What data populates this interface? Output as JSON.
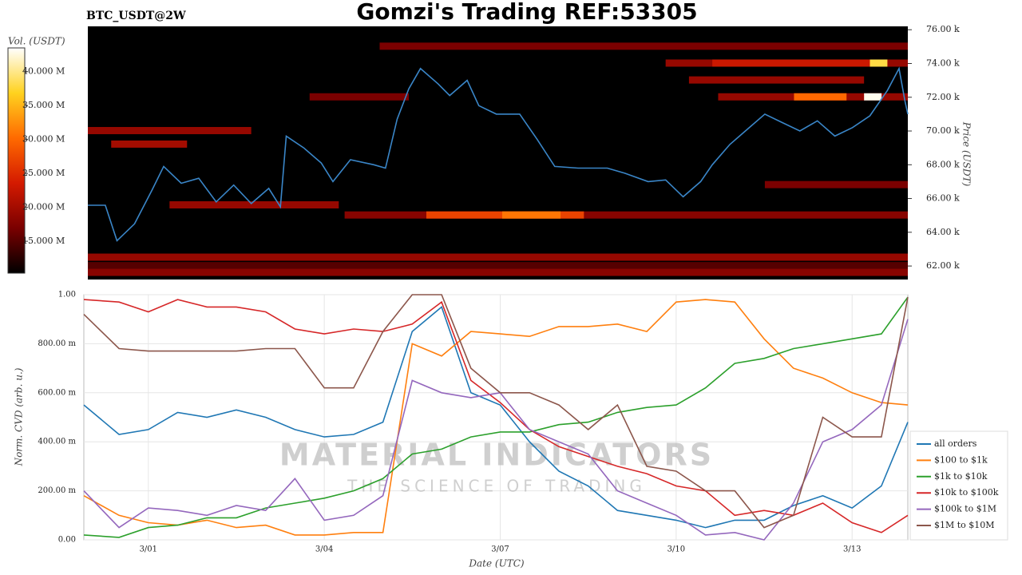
{
  "chart_data": [
    {
      "type": "heatmap",
      "title": "Gomzi's Trading REF:53305",
      "label": "BTC_USDT@2W",
      "ylabel": "Price (USDT)",
      "xlim": [
        -1.1,
        12.95
      ],
      "ylim": [
        61200,
        76200
      ],
      "yticks": [
        {
          "value": 62000,
          "label": "62.00 k"
        },
        {
          "value": 64000,
          "label": "64.00 k"
        },
        {
          "value": 66000,
          "label": "66.00 k"
        },
        {
          "value": 68000,
          "label": "68.00 k"
        },
        {
          "value": 70000,
          "label": "70.00 k"
        },
        {
          "value": 72000,
          "label": "72.00 k"
        },
        {
          "value": 74000,
          "label": "74.00 k"
        },
        {
          "value": 76000,
          "label": "76.00 k"
        }
      ],
      "colorbar": {
        "title": "Vol. (USDT)",
        "zlim": [
          10300000,
          43500000
        ],
        "colors": [
          "#000000",
          "#7a0000",
          "#d41a00",
          "#ff6a00",
          "#ffd21f",
          "#ffffff"
        ],
        "ticks": [
          {
            "value": 15000000,
            "label": "15.000 M"
          },
          {
            "value": 20000000,
            "label": "20.000 M"
          },
          {
            "value": 25000000,
            "label": "25.000 M"
          },
          {
            "value": 30000000,
            "label": "30.000 M"
          },
          {
            "value": 35000000,
            "label": "35.000 M"
          },
          {
            "value": 40000000,
            "label": "40.000 M"
          }
        ]
      },
      "cells": [
        {
          "y": 75000,
          "x0": 3.9,
          "x1": 12.95,
          "value": 17000000
        },
        {
          "y": 74000,
          "x0": 8.8,
          "x1": 12.95,
          "value": 19000000
        },
        {
          "y": 74000,
          "x0": 9.6,
          "x1": 12.3,
          "value": 23000000
        },
        {
          "y": 74000,
          "x0": 12.3,
          "x1": 12.6,
          "value": 38000000
        },
        {
          "y": 73000,
          "x0": 9.2,
          "x1": 12.2,
          "value": 19000000
        },
        {
          "y": 72000,
          "x0": 2.7,
          "x1": 4.4,
          "value": 17000000
        },
        {
          "y": 72000,
          "x0": 9.7,
          "x1": 12.95,
          "value": 19000000
        },
        {
          "y": 72000,
          "x0": 11.0,
          "x1": 11.9,
          "value": 30000000
        },
        {
          "y": 72000,
          "x0": 12.2,
          "x1": 12.5,
          "value": 43000000
        },
        {
          "y": 70000,
          "x0": -1.1,
          "x1": 1.7,
          "value": 19000000
        },
        {
          "y": 69200,
          "x0": -0.7,
          "x1": 0.6,
          "value": 20000000
        },
        {
          "y": 66800,
          "x0": 10.5,
          "x1": 12.95,
          "value": 17000000
        },
        {
          "y": 65600,
          "x0": 0.3,
          "x1": 3.2,
          "value": 19000000
        },
        {
          "y": 65000,
          "x0": 3.3,
          "x1": 12.95,
          "value": 18000000
        },
        {
          "y": 65000,
          "x0": 4.7,
          "x1": 7.4,
          "value": 27000000
        },
        {
          "y": 65000,
          "x0": 6.0,
          "x1": 7.0,
          "value": 31000000
        },
        {
          "y": 62500,
          "x0": -1.1,
          "x1": 12.95,
          "value": 19000000
        },
        {
          "y": 62000,
          "x0": -1.1,
          "x1": 12.95,
          "value": 15000000
        },
        {
          "y": 61600,
          "x0": -1.1,
          "x1": 12.95,
          "value": 18000000
        }
      ],
      "series": [
        {
          "color": "#3a86c8",
          "x": [
            -1.1,
            -0.8,
            -0.6,
            -0.3,
            0.0,
            0.2,
            0.5,
            0.8,
            1.1,
            1.4,
            1.7,
            2.0,
            2.2,
            2.3,
            2.6,
            2.9,
            3.1,
            3.4,
            3.8,
            4.0,
            4.2,
            4.4,
            4.6,
            4.9,
            5.1,
            5.4,
            5.6,
            5.9,
            6.3,
            6.6,
            6.9,
            7.3,
            7.8,
            8.1,
            8.5,
            8.8,
            9.1,
            9.4,
            9.6,
            9.9,
            10.2,
            10.5,
            10.8,
            11.1,
            11.4,
            11.7,
            12.0,
            12.3,
            12.6,
            12.8,
            12.9,
            12.95
          ],
          "values": [
            65600,
            65600,
            63500,
            64500,
            66500,
            67900,
            66900,
            67200,
            65800,
            66800,
            65700,
            66600,
            65500,
            69700,
            69000,
            68100,
            67000,
            68300,
            68000,
            67800,
            70700,
            72500,
            73700,
            72800,
            72100,
            73000,
            71500,
            71000,
            71000,
            69500,
            67900,
            67800,
            67800,
            67500,
            67000,
            67100,
            66100,
            67000,
            68000,
            69200,
            70100,
            71000,
            70500,
            70000,
            70600,
            69700,
            70200,
            70900,
            72400,
            73700,
            71800,
            71000
          ]
        }
      ]
    },
    {
      "type": "line",
      "xlabel": "Date (UTC)",
      "ylabel": "Norm. CVD (arb. u.)",
      "grid": true,
      "xlim": [
        -1.1,
        12.95
      ],
      "ylim": [
        0,
        1
      ],
      "xticks": [
        {
          "value": 0,
          "label": "3/01"
        },
        {
          "value": 3,
          "label": "3/04"
        },
        {
          "value": 6,
          "label": "3/07"
        },
        {
          "value": 9,
          "label": "3/10"
        },
        {
          "value": 12,
          "label": "3/13"
        }
      ],
      "yticks": [
        {
          "value": 0,
          "label": "0.00"
        },
        {
          "value": 0.2,
          "label": "200.00 m"
        },
        {
          "value": 0.4,
          "label": "400.00 m"
        },
        {
          "value": 0.6,
          "label": "600.00 m"
        },
        {
          "value": 0.8,
          "label": "800.00 m"
        },
        {
          "value": 1,
          "label": "1.00"
        }
      ],
      "watermark": [
        "MATERIAL INDICATORS",
        "THE SCIENCE OF TRADING"
      ],
      "x": [
        -1.1,
        -0.5,
        0,
        0.5,
        1,
        1.5,
        2,
        2.5,
        3,
        3.5,
        4,
        4.5,
        5,
        5.5,
        6,
        6.5,
        7,
        7.5,
        8,
        8.5,
        9,
        9.5,
        10,
        10.5,
        11,
        11.5,
        12,
        12.5,
        12.95
      ],
      "series": [
        {
          "name": "all orders",
          "color": "#1f77b4",
          "values": [
            0.55,
            0.43,
            0.45,
            0.52,
            0.5,
            0.53,
            0.5,
            0.45,
            0.42,
            0.43,
            0.48,
            0.85,
            0.95,
            0.6,
            0.55,
            0.4,
            0.28,
            0.22,
            0.12,
            0.1,
            0.08,
            0.05,
            0.08,
            0.08,
            0.14,
            0.18,
            0.13,
            0.22,
            0.48
          ]
        },
        {
          "name": "$100 to $1k",
          "color": "#ff7f0e",
          "values": [
            0.18,
            0.1,
            0.07,
            0.06,
            0.08,
            0.05,
            0.06,
            0.02,
            0.02,
            0.03,
            0.03,
            0.8,
            0.75,
            0.85,
            0.84,
            0.83,
            0.87,
            0.87,
            0.88,
            0.85,
            0.97,
            0.98,
            0.97,
            0.82,
            0.7,
            0.66,
            0.6,
            0.56,
            0.55
          ]
        },
        {
          "name": "$1k to $10k",
          "color": "#2ca02c",
          "values": [
            0.02,
            0.01,
            0.05,
            0.06,
            0.09,
            0.09,
            0.13,
            0.15,
            0.17,
            0.2,
            0.25,
            0.35,
            0.37,
            0.42,
            0.44,
            0.44,
            0.47,
            0.48,
            0.52,
            0.54,
            0.55,
            0.62,
            0.72,
            0.74,
            0.78,
            0.8,
            0.82,
            0.84,
            0.99
          ]
        },
        {
          "name": "$10k to $100k",
          "color": "#d62728",
          "values": [
            0.98,
            0.97,
            0.93,
            0.98,
            0.95,
            0.95,
            0.93,
            0.86,
            0.84,
            0.86,
            0.85,
            0.88,
            0.97,
            0.65,
            0.56,
            0.45,
            0.38,
            0.34,
            0.3,
            0.27,
            0.22,
            0.2,
            0.1,
            0.12,
            0.1,
            0.15,
            0.07,
            0.03,
            0.1
          ]
        },
        {
          "name": "$100k to $1M",
          "color": "#9467bd",
          "values": [
            0.2,
            0.05,
            0.13,
            0.12,
            0.1,
            0.14,
            0.12,
            0.25,
            0.08,
            0.1,
            0.18,
            0.65,
            0.6,
            0.58,
            0.6,
            0.45,
            0.4,
            0.35,
            0.2,
            0.15,
            0.1,
            0.02,
            0.03,
            0.0,
            0.15,
            0.4,
            0.45,
            0.55,
            0.9
          ]
        },
        {
          "name": "$1M to $10M",
          "color": "#8c564b",
          "values": [
            0.92,
            0.78,
            0.77,
            0.77,
            0.77,
            0.77,
            0.78,
            0.78,
            0.62,
            0.62,
            0.85,
            1.0,
            1.0,
            0.7,
            0.6,
            0.6,
            0.55,
            0.45,
            0.55,
            0.3,
            0.28,
            0.2,
            0.2,
            0.05,
            0.1,
            0.5,
            0.42,
            0.42,
            0.99
          ]
        }
      ]
    }
  ]
}
